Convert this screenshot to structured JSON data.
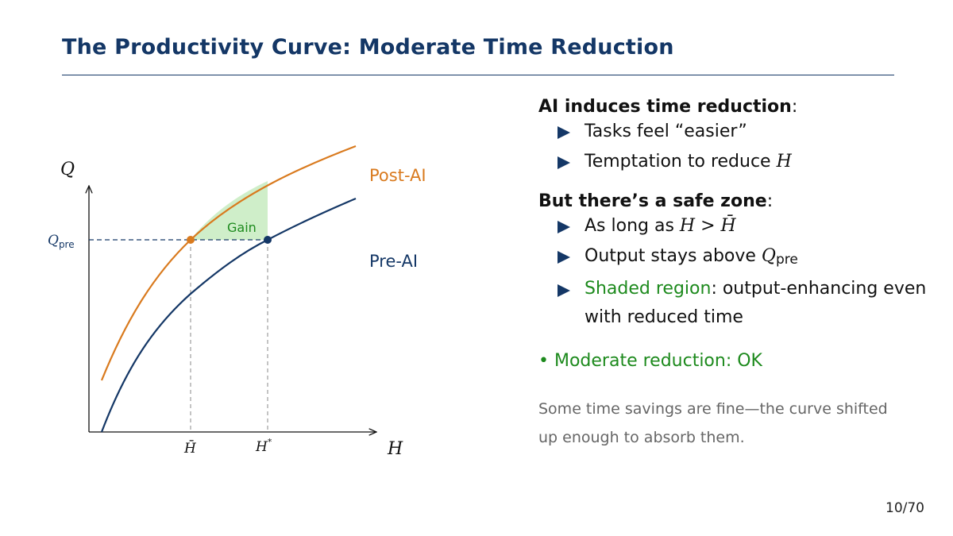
{
  "slide": {
    "title": "The Productivity Curve: Moderate Time Reduction",
    "page": "10/70"
  },
  "diagram": {
    "y_axis_label": "Q",
    "x_axis_label": "H",
    "q_pre_label": "Q",
    "q_pre_sub": "pre",
    "h_bar_label": "H̄",
    "h_star_label": "H",
    "h_star_sup": "*",
    "post_ai_label": "Post-AI",
    "pre_ai_label": "Pre-AI",
    "gain_label": "Gain",
    "colors": {
      "post_ai": "#d97a1e",
      "pre_ai": "#143766",
      "gain_fill": "#cfeec9",
      "gain_text": "#1d8a1d",
      "dashed": "#888888"
    }
  },
  "bullets": {
    "section1": {
      "heading": "AI induces time reduction",
      "items": [
        {
          "text": "Tasks feel “easier”"
        },
        {
          "text": "Temptation to reduce ",
          "math": "H"
        }
      ]
    },
    "section2": {
      "heading": "But there’s a safe zone",
      "items": [
        {
          "text": "As long as ",
          "math": "H > H̄"
        },
        {
          "text": "Output stays above ",
          "math": "Q",
          "math_sub": "pre"
        },
        {
          "highlight": "Shaded region",
          "text": ": output-enhancing even with reduced time"
        }
      ]
    },
    "verdict": "• Moderate reduction: OK",
    "note": "Some time savings are fine—the curve shifted up enough to absorb them."
  }
}
